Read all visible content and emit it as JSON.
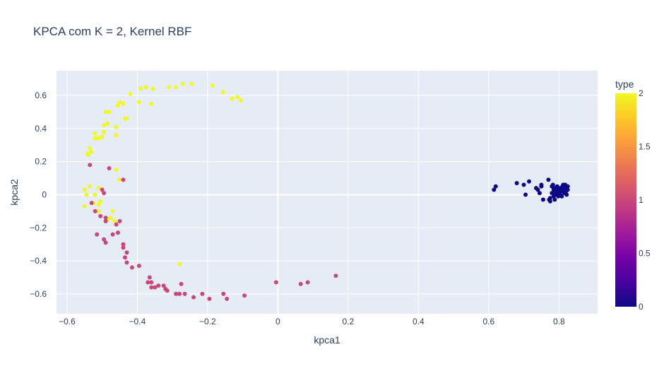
{
  "chart_data": {
    "type": "scatter",
    "title": "KPCA com K = 2, Kernel RBF",
    "xlabel": "kpca1",
    "ylabel": "kpca2",
    "xlim": [
      -0.63,
      0.91
    ],
    "ylim": [
      -0.72,
      0.75
    ],
    "xticks": [
      {
        "value": -0.6,
        "label": "−0.6"
      },
      {
        "value": -0.4,
        "label": "−0.4"
      },
      {
        "value": -0.2,
        "label": "−0.2"
      },
      {
        "value": 0,
        "label": "0"
      },
      {
        "value": 0.2,
        "label": "0.2"
      },
      {
        "value": 0.4,
        "label": "0.4"
      },
      {
        "value": 0.6,
        "label": "0.6"
      },
      {
        "value": 0.8,
        "label": "0.8"
      }
    ],
    "yticks": [
      {
        "value": -0.6,
        "label": "−0.6"
      },
      {
        "value": -0.4,
        "label": "−0.4"
      },
      {
        "value": -0.2,
        "label": "−0.2"
      },
      {
        "value": 0,
        "label": "0"
      },
      {
        "value": 0.2,
        "label": "0.2"
      },
      {
        "value": 0.4,
        "label": "0.4"
      },
      {
        "value": 0.6,
        "label": "0.6"
      }
    ],
    "grid": true,
    "colorbar": {
      "title": "type",
      "range": [
        0,
        2
      ],
      "ticks": [
        {
          "value": 0,
          "label": "0"
        },
        {
          "value": 0.5,
          "label": "0.5"
        },
        {
          "value": 1,
          "label": "1"
        },
        {
          "value": 1.5,
          "label": "1.5"
        },
        {
          "value": 2,
          "label": "2"
        }
      ],
      "colorscale": [
        "#0d0887",
        "#46039f",
        "#7201a8",
        "#9c179e",
        "#bd3786",
        "#d8576b",
        "#ed7953",
        "#fb9f3a",
        "#fdca26",
        "#f0f921"
      ]
    },
    "colors": {
      "type_0": "#0d0887",
      "type_1": "#cc4778",
      "type_2": "#f0f921"
    },
    "series": [
      {
        "color_value": 2,
        "x": [
          -0.27,
          -0.245,
          -0.29,
          -0.31,
          -0.185,
          -0.155,
          -0.13,
          -0.115,
          -0.105,
          -0.355,
          -0.375,
          -0.39,
          -0.36,
          -0.395,
          -0.42,
          -0.44,
          -0.45,
          -0.455,
          -0.43,
          -0.435,
          -0.48,
          -0.49,
          -0.485,
          -0.495,
          -0.46,
          -0.46,
          -0.495,
          -0.5,
          -0.52,
          -0.52,
          -0.51,
          -0.53,
          -0.535,
          -0.54,
          -0.54,
          -0.46,
          -0.45,
          -0.535,
          -0.51,
          -0.52,
          -0.55,
          -0.545,
          -0.525,
          -0.55,
          -0.505,
          -0.51,
          -0.51,
          -0.47,
          -0.485,
          -0.475,
          -0.465,
          -0.28
        ],
        "y": [
          0.67,
          0.67,
          0.65,
          0.65,
          0.66,
          0.62,
          0.58,
          0.59,
          0.57,
          0.64,
          0.65,
          0.64,
          0.55,
          0.56,
          0.61,
          0.55,
          0.56,
          0.54,
          0.46,
          0.46,
          0.5,
          0.5,
          0.43,
          0.42,
          0.41,
          0.36,
          0.38,
          0.35,
          0.37,
          0.34,
          0.34,
          0.26,
          0.28,
          0.25,
          0.24,
          0.15,
          0.09,
          0.05,
          0.04,
          0.0,
          0.03,
          0.0,
          -0.05,
          -0.07,
          -0.04,
          -0.06,
          -0.1,
          -0.1,
          -0.15,
          -0.14,
          -0.16,
          -0.42
        ]
      },
      {
        "color_value": 1,
        "x": [
          -0.48,
          -0.44,
          -0.495,
          -0.5,
          -0.535,
          -0.53,
          -0.52,
          -0.505,
          -0.49,
          -0.49,
          -0.45,
          -0.46,
          -0.455,
          -0.47,
          -0.515,
          -0.495,
          -0.49,
          -0.44,
          -0.44,
          -0.43,
          -0.435,
          -0.43,
          -0.415,
          -0.395,
          -0.37,
          -0.365,
          -0.36,
          -0.35,
          -0.36,
          -0.34,
          -0.325,
          -0.315,
          -0.32,
          -0.29,
          -0.28,
          -0.275,
          -0.265,
          -0.24,
          -0.215,
          -0.195,
          -0.155,
          -0.145,
          -0.095,
          -0.005,
          0.065,
          0.085,
          0.165
        ],
        "y": [
          0.16,
          0.09,
          0.01,
          0.03,
          0.18,
          -0.05,
          -0.1,
          -0.13,
          -0.14,
          -0.16,
          -0.16,
          -0.18,
          -0.23,
          -0.24,
          -0.24,
          -0.27,
          -0.29,
          -0.3,
          -0.32,
          -0.35,
          -0.38,
          -0.41,
          -0.44,
          -0.43,
          -0.53,
          -0.5,
          -0.53,
          -0.56,
          -0.56,
          -0.55,
          -0.55,
          -0.58,
          -0.57,
          -0.6,
          -0.6,
          -0.54,
          -0.6,
          -0.62,
          -0.6,
          -0.63,
          -0.6,
          -0.63,
          -0.61,
          -0.53,
          -0.54,
          -0.53,
          -0.49
        ]
      },
      {
        "color_value": 0,
        "x": [
          0.615,
          0.62,
          0.68,
          0.7,
          0.705,
          0.715,
          0.735,
          0.745,
          0.75,
          0.755,
          0.77,
          0.775,
          0.775,
          0.78,
          0.78,
          0.785,
          0.785,
          0.79,
          0.79,
          0.795,
          0.795,
          0.8,
          0.8,
          0.805,
          0.805,
          0.81,
          0.81,
          0.815,
          0.815,
          0.82,
          0.82,
          0.825,
          0.825,
          0.822,
          0.818,
          0.812,
          0.808,
          0.798,
          0.788,
          0.783,
          0.75,
          0.74,
          0.772,
          0.79,
          0.803,
          0.81,
          0.817,
          0.822
        ],
        "y": [
          0.03,
          0.05,
          0.07,
          0.06,
          0.0,
          0.08,
          0.04,
          0.01,
          0.06,
          -0.03,
          0.09,
          -0.02,
          -0.04,
          0.05,
          0.01,
          -0.01,
          0.03,
          0.04,
          0.0,
          0.02,
          0.05,
          0.03,
          0.01,
          0.04,
          0.02,
          0.05,
          0.02,
          0.03,
          0.01,
          0.04,
          0.02,
          0.05,
          0.03,
          0.0,
          0.06,
          0.06,
          -0.01,
          -0.01,
          -0.03,
          0.06,
          0.05,
          0.03,
          -0.03,
          0.02,
          0.0,
          0.04,
          0.05,
          0.04
        ]
      }
    ]
  }
}
